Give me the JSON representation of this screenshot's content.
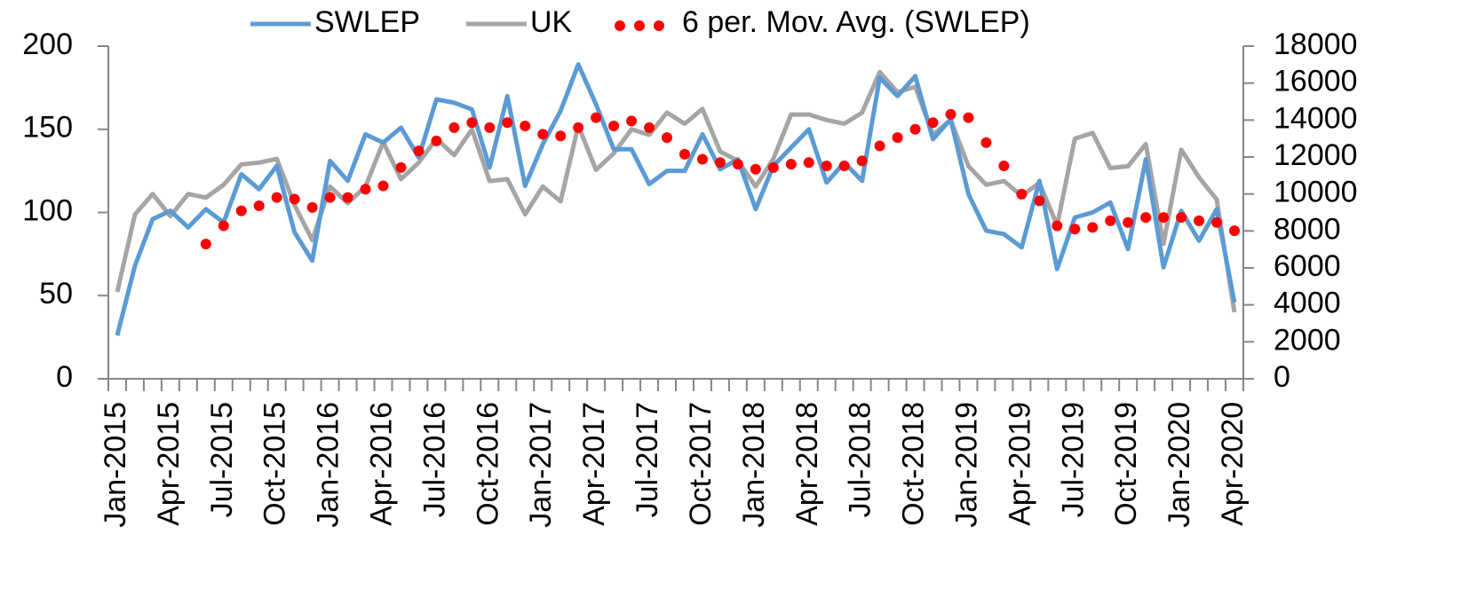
{
  "chart_data": {
    "type": "line",
    "categories": [
      "Jan-2015",
      null,
      null,
      "Apr-2015",
      null,
      null,
      "Jul-2015",
      null,
      null,
      "Oct-2015",
      null,
      null,
      "Jan-2016",
      null,
      null,
      "Apr-2016",
      null,
      null,
      "Jul-2016",
      null,
      null,
      "Oct-2016",
      null,
      null,
      "Jan-2017",
      null,
      null,
      "Apr-2017",
      null,
      null,
      "Jul-2017",
      null,
      null,
      "Oct-2017",
      null,
      null,
      "Jan-2018",
      null,
      null,
      "Apr-2018",
      null,
      null,
      "Jul-2018",
      null,
      null,
      "Oct-2018",
      null,
      null,
      "Jan-2019",
      null,
      null,
      "Apr-2019",
      null,
      null,
      "Jul-2019",
      null,
      null,
      "Oct-2019",
      null,
      null,
      "Jan-2020",
      null,
      null,
      "Apr-2020"
    ],
    "series": [
      {
        "name": "SWLEP",
        "color": "#5b9bd5",
        "style": "line",
        "axis": "y",
        "values": [
          26,
          68,
          96,
          101,
          91,
          102,
          94,
          123,
          114,
          128,
          88,
          71,
          131,
          119,
          147,
          142,
          151,
          133,
          168,
          166,
          162,
          127,
          170,
          116,
          141,
          161,
          189,
          165,
          138,
          138,
          117,
          125,
          125,
          147,
          126,
          132,
          102,
          128,
          139,
          150,
          118,
          130,
          119,
          181,
          170,
          182,
          144,
          156,
          111,
          89,
          87,
          79,
          119,
          66,
          97,
          100,
          106,
          78,
          132,
          67,
          101,
          83,
          102,
          46
        ]
      },
      {
        "name": "UK",
        "color": "#a5a5a5",
        "style": "line",
        "axis": "y2",
        "values": [
          4700,
          8900,
          10000,
          8800,
          10000,
          9800,
          10500,
          11600,
          11700,
          11900,
          9400,
          7500,
          10400,
          9500,
          10400,
          12800,
          10800,
          11700,
          13000,
          12100,
          13500,
          10700,
          10800,
          8900,
          10400,
          9600,
          13700,
          11300,
          12200,
          13500,
          13200,
          14400,
          13800,
          14600,
          12300,
          11800,
          10400,
          11900,
          14300,
          14300,
          14000,
          13800,
          14400,
          16600,
          15500,
          15800,
          13200,
          14000,
          11500,
          10500,
          10700,
          9900,
          10600,
          8300,
          13000,
          13300,
          11400,
          11500,
          12700,
          7300,
          12400,
          10900,
          9700,
          3600
        ]
      },
      {
        "name": "6 per. Mov. Avg. (SWLEP)",
        "color": "#ff0000",
        "style": "dots",
        "axis": "y",
        "values": [
          null,
          null,
          null,
          null,
          null,
          81,
          92,
          101,
          104,
          109,
          108,
          103,
          109,
          109,
          114,
          116,
          127,
          137,
          143,
          151,
          154,
          151,
          154,
          152,
          147,
          146,
          151,
          157,
          152,
          155,
          151,
          145,
          135,
          132,
          130,
          129,
          126,
          127,
          129,
          130,
          128,
          128,
          131,
          140,
          145,
          150,
          154,
          159,
          157,
          142,
          128,
          111,
          107,
          92,
          90,
          91,
          95,
          94,
          97,
          97,
          97,
          95,
          94,
          89
        ]
      }
    ],
    "ylim": [
      0,
      200
    ],
    "yticks": [
      0,
      50,
      100,
      150,
      200
    ],
    "y2lim": [
      0,
      18000
    ],
    "y2ticks": [
      0,
      2000,
      4000,
      6000,
      8000,
      10000,
      12000,
      14000,
      16000,
      18000
    ],
    "grid": false,
    "legend": "top"
  }
}
